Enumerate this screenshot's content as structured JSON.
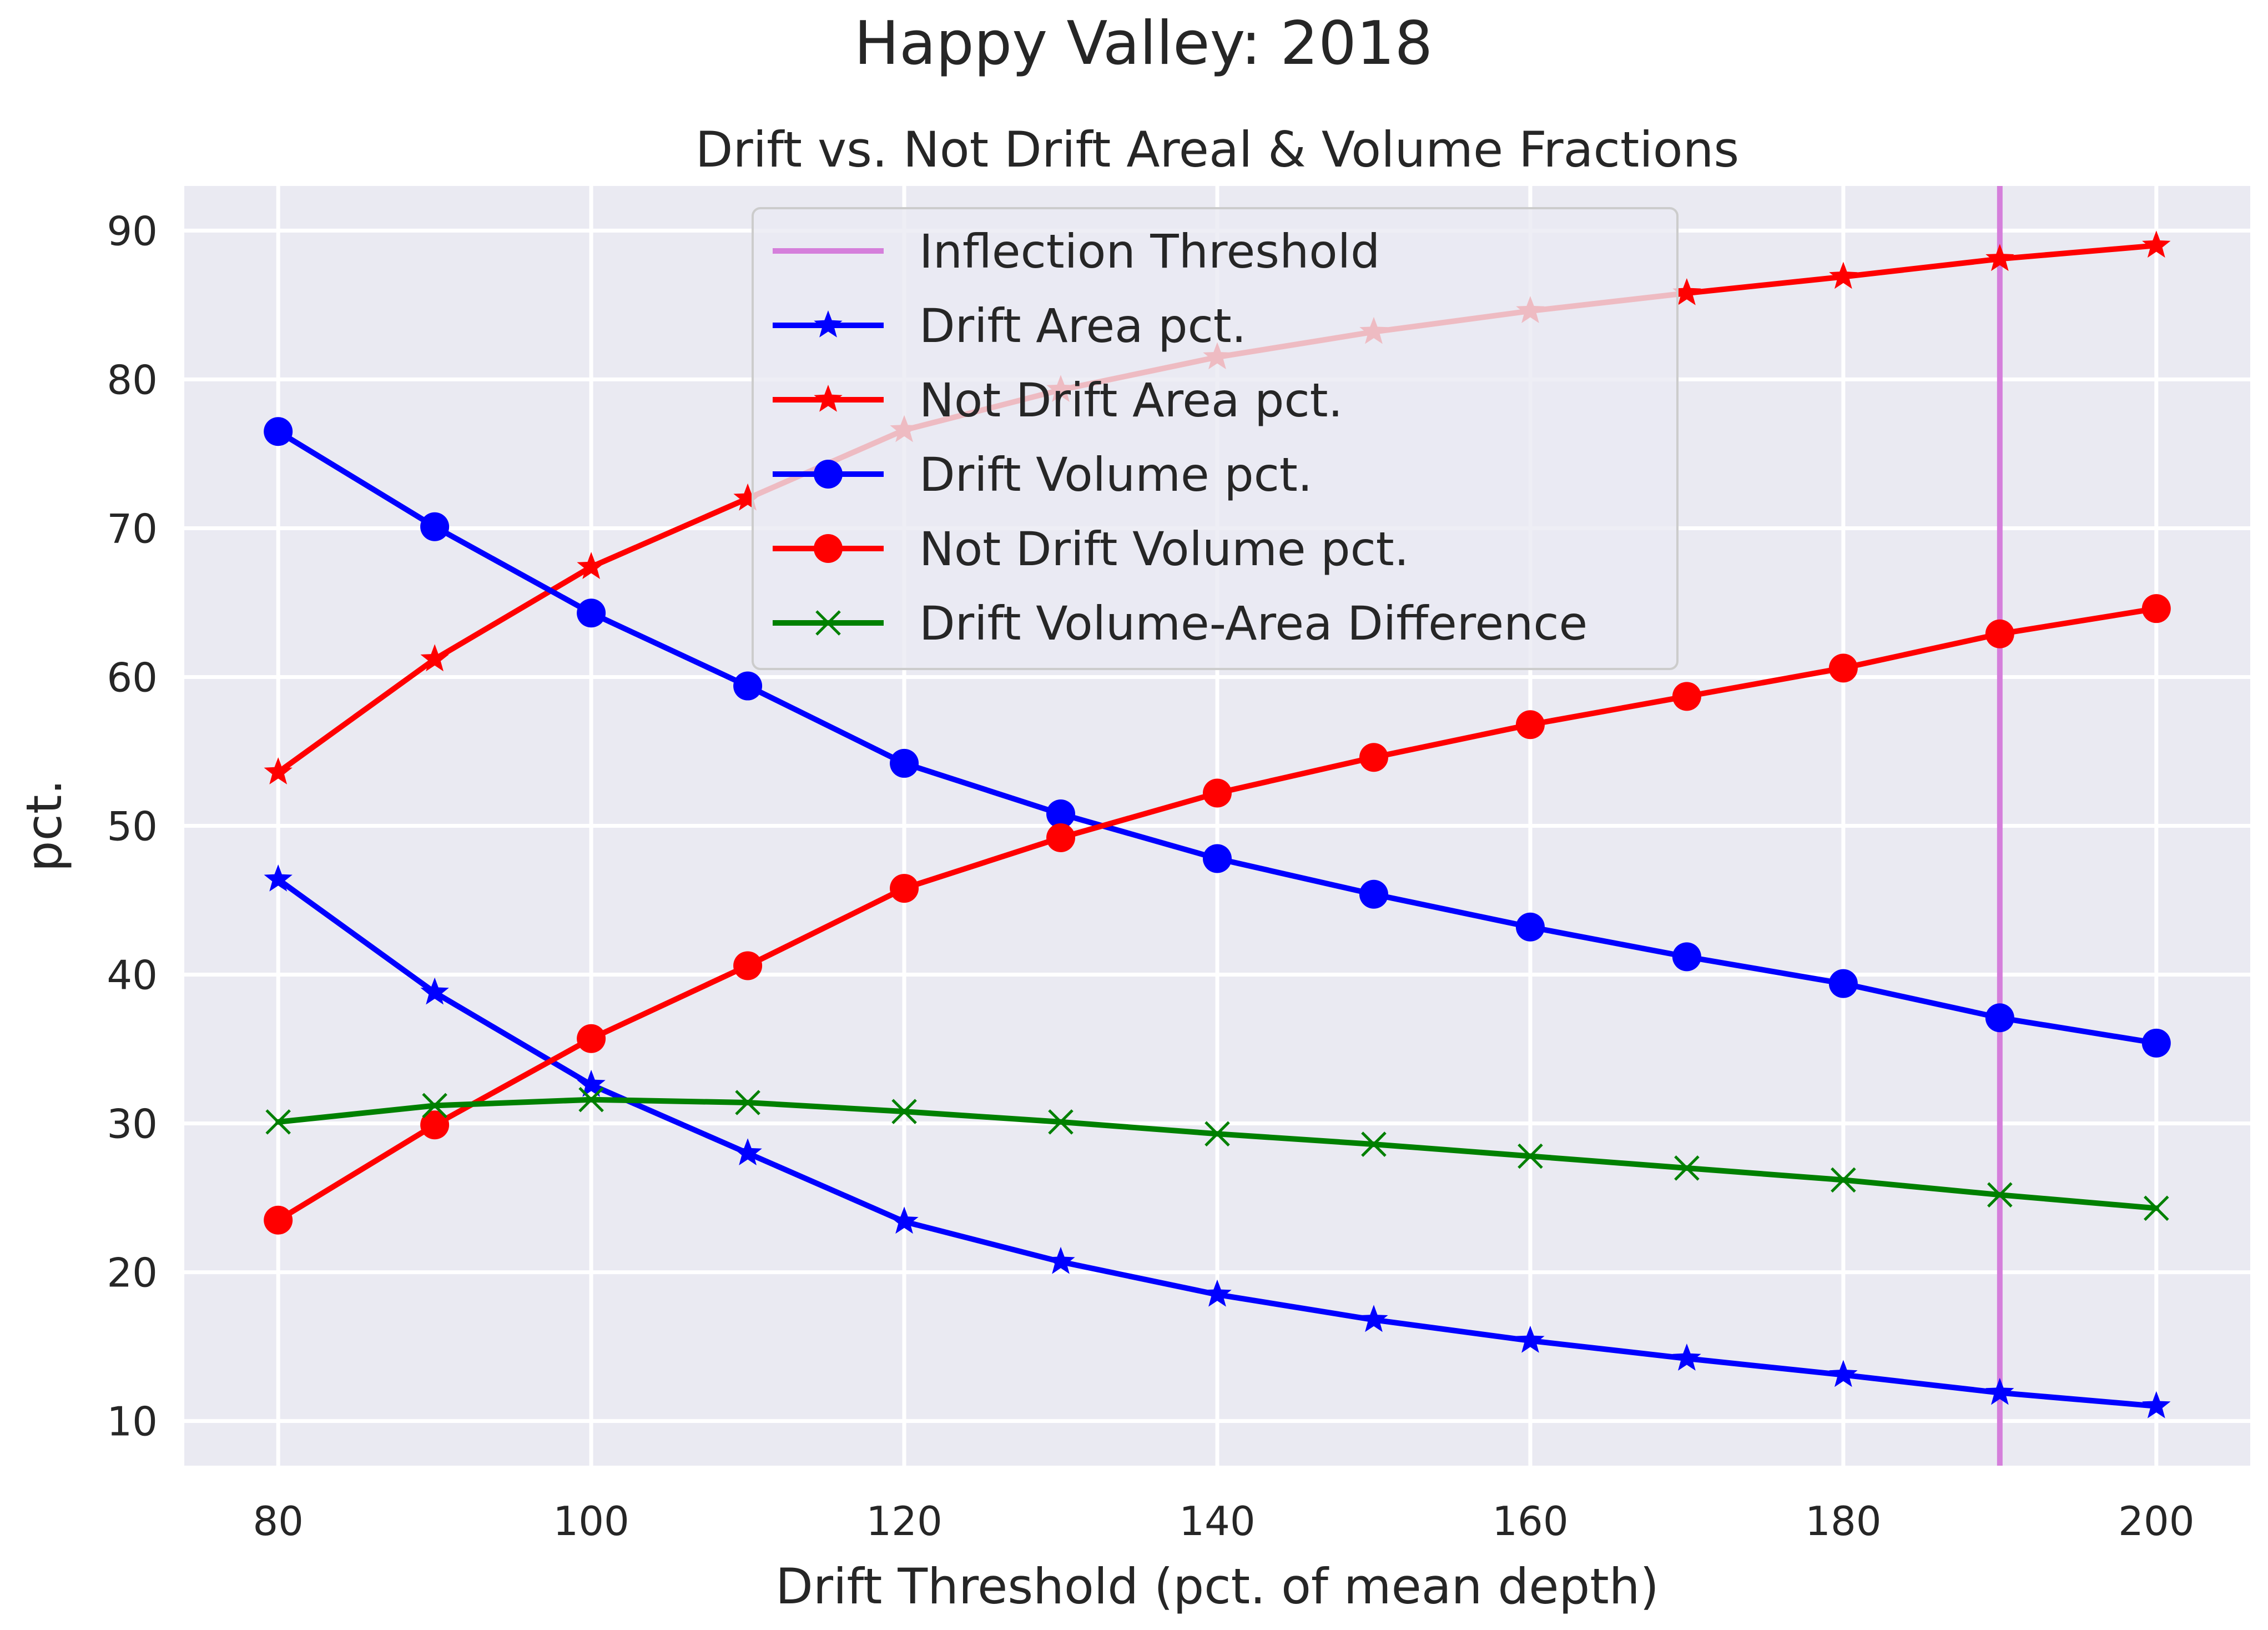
{
  "figure": {
    "suptitle": "Happy Valley: 2018",
    "subtitle": "Drift vs. Not Drift Areal & Volume Fractions"
  },
  "chart_data": {
    "type": "line",
    "title": "Drift vs. Not Drift Areal & Volume Fractions",
    "xlabel": "Drift Threshold (pct. of mean depth)",
    "ylabel": "pct.",
    "xlim": [
      74,
      206
    ],
    "ylim": [
      7,
      93
    ],
    "xticks": [
      80,
      100,
      120,
      140,
      160,
      180,
      200
    ],
    "yticks": [
      10,
      20,
      30,
      40,
      50,
      60,
      70,
      80,
      90
    ],
    "grid": true,
    "legend_position": "upper-center",
    "x": [
      80,
      90,
      100,
      110,
      120,
      130,
      140,
      150,
      160,
      170,
      180,
      190,
      200
    ],
    "vline": {
      "name": "Inflection Threshold",
      "x": 190,
      "color": "#d57fdb"
    },
    "series": [
      {
        "name": "Drift Area pct.",
        "color": "#0000ff",
        "marker": "star",
        "values": [
          46.4,
          38.8,
          32.6,
          28.0,
          23.4,
          20.7,
          18.5,
          16.8,
          15.4,
          14.2,
          13.1,
          11.9,
          11.0
        ]
      },
      {
        "name": "Not Drift Area pct.",
        "color": "#ff0000",
        "marker": "star",
        "values": [
          53.6,
          61.2,
          67.4,
          72.0,
          76.6,
          79.3,
          81.5,
          83.2,
          84.6,
          85.8,
          86.9,
          88.1,
          89.0
        ]
      },
      {
        "name": "Drift Volume pct.",
        "color": "#0000ff",
        "marker": "circle",
        "values": [
          76.5,
          70.1,
          64.3,
          59.4,
          54.2,
          50.8,
          47.8,
          45.4,
          43.2,
          41.2,
          39.4,
          37.1,
          35.4
        ]
      },
      {
        "name": "Not Drift Volume pct.",
        "color": "#ff0000",
        "marker": "circle",
        "values": [
          23.5,
          29.9,
          35.7,
          40.6,
          45.8,
          49.2,
          52.2,
          54.6,
          56.8,
          58.7,
          60.6,
          62.9,
          64.6
        ]
      },
      {
        "name": "Drift Volume-Area Difference",
        "color": "#008000",
        "marker": "x",
        "values": [
          30.1,
          31.2,
          31.6,
          31.4,
          30.8,
          30.1,
          29.3,
          28.6,
          27.8,
          27.0,
          26.2,
          25.2,
          24.3
        ]
      }
    ]
  }
}
